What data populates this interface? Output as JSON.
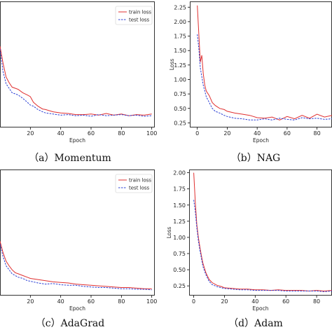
{
  "chart_data": [
    {
      "type": "line",
      "caption": "（a）Momentum",
      "xlabel": "Epoch",
      "ylabel": "",
      "xlim": [
        0,
        102
      ],
      "ylim": [
        0.1,
        2.35
      ],
      "xticks": [
        20,
        40,
        60,
        80,
        100
      ],
      "yticks": [],
      "legend": "top-right",
      "series": [
        {
          "name": "train loss",
          "color": "#e03030",
          "dash": "solid",
          "x": [
            0,
            2,
            4,
            6,
            8,
            10,
            12,
            15,
            18,
            20,
            22,
            25,
            28,
            30,
            35,
            40,
            45,
            50,
            55,
            60,
            65,
            70,
            75,
            80,
            85,
            90,
            95,
            100
          ],
          "y": [
            1.55,
            1.25,
            1.0,
            0.9,
            0.82,
            0.8,
            0.78,
            0.72,
            0.68,
            0.65,
            0.55,
            0.48,
            0.43,
            0.42,
            0.38,
            0.36,
            0.35,
            0.33,
            0.33,
            0.34,
            0.32,
            0.35,
            0.32,
            0.34,
            0.31,
            0.33,
            0.32,
            0.34
          ]
        },
        {
          "name": "test loss",
          "color": "#2a3fd4",
          "dash": "dashed",
          "x": [
            0,
            2,
            4,
            6,
            8,
            10,
            12,
            15,
            18,
            20,
            22,
            25,
            28,
            30,
            35,
            40,
            45,
            50,
            55,
            60,
            65,
            70,
            75,
            80,
            85,
            90,
            95,
            100
          ],
          "y": [
            1.5,
            1.1,
            0.88,
            0.8,
            0.72,
            0.7,
            0.68,
            0.62,
            0.55,
            0.5,
            0.48,
            0.42,
            0.38,
            0.36,
            0.34,
            0.32,
            0.33,
            0.31,
            0.32,
            0.3,
            0.33,
            0.31,
            0.32,
            0.33,
            0.31,
            0.32,
            0.3,
            0.31
          ]
        }
      ]
    },
    {
      "type": "line",
      "caption": "（b）NAG",
      "xlabel": "Epoch",
      "ylabel": "Loss",
      "xlim": [
        -5,
        90
      ],
      "ylim": [
        0.17,
        2.35
      ],
      "xticks": [
        0,
        20,
        40,
        60,
        80
      ],
      "yticks": [
        0.25,
        0.5,
        0.75,
        1.0,
        1.25,
        1.5,
        1.75,
        2.0,
        2.25
      ],
      "legend": "none",
      "series": [
        {
          "name": "",
          "color": "#e03030",
          "dash": "solid",
          "x": [
            0,
            1,
            2,
            3,
            4,
            5,
            6,
            8,
            10,
            12,
            15,
            18,
            20,
            25,
            30,
            35,
            40,
            45,
            50,
            55,
            60,
            65,
            70,
            75,
            80,
            85,
            90
          ],
          "y": [
            2.28,
            1.8,
            1.3,
            1.42,
            1.1,
            0.9,
            0.8,
            0.72,
            0.6,
            0.55,
            0.5,
            0.48,
            0.45,
            0.42,
            0.4,
            0.38,
            0.34,
            0.33,
            0.35,
            0.3,
            0.36,
            0.32,
            0.38,
            0.33,
            0.4,
            0.35,
            0.38
          ]
        },
        {
          "name": "",
          "color": "#2a3fd4",
          "dash": "dashed",
          "x": [
            0,
            1,
            2,
            3,
            4,
            5,
            6,
            8,
            10,
            12,
            15,
            18,
            20,
            25,
            30,
            35,
            40,
            45,
            50,
            55,
            60,
            65,
            70,
            75,
            80,
            85,
            90
          ],
          "y": [
            1.78,
            1.55,
            1.2,
            1.05,
            0.9,
            0.8,
            0.7,
            0.6,
            0.5,
            0.45,
            0.42,
            0.38,
            0.36,
            0.33,
            0.32,
            0.3,
            0.3,
            0.32,
            0.3,
            0.33,
            0.31,
            0.3,
            0.34,
            0.32,
            0.33,
            0.31,
            0.32
          ]
        }
      ]
    },
    {
      "type": "line",
      "caption": "（c）AdaGrad",
      "xlabel": "Epoch",
      "ylabel": "",
      "xlim": [
        0,
        102
      ],
      "ylim": [
        0.1,
        2.3
      ],
      "xticks": [
        20,
        40,
        60,
        80,
        100
      ],
      "yticks": [],
      "legend": "top-right",
      "series": [
        {
          "name": "train loss",
          "color": "#e03030",
          "dash": "solid",
          "x": [
            0,
            2,
            4,
            6,
            8,
            10,
            12,
            15,
            18,
            20,
            25,
            30,
            35,
            40,
            45,
            50,
            55,
            60,
            65,
            70,
            75,
            80,
            85,
            90,
            95,
            100
          ],
          "y": [
            1.05,
            0.85,
            0.7,
            0.62,
            0.55,
            0.5,
            0.48,
            0.45,
            0.42,
            0.4,
            0.38,
            0.36,
            0.34,
            0.33,
            0.32,
            0.3,
            0.29,
            0.28,
            0.27,
            0.26,
            0.25,
            0.24,
            0.24,
            0.23,
            0.22,
            0.22
          ]
        },
        {
          "name": "test loss",
          "color": "#2a3fd4",
          "dash": "dashed",
          "x": [
            0,
            2,
            4,
            6,
            8,
            10,
            12,
            15,
            18,
            20,
            25,
            30,
            35,
            40,
            45,
            50,
            55,
            60,
            65,
            70,
            75,
            80,
            85,
            90,
            95,
            100
          ],
          "y": [
            1.0,
            0.78,
            0.62,
            0.55,
            0.48,
            0.45,
            0.42,
            0.4,
            0.36,
            0.35,
            0.32,
            0.3,
            0.31,
            0.29,
            0.28,
            0.28,
            0.26,
            0.25,
            0.24,
            0.24,
            0.23,
            0.22,
            0.22,
            0.21,
            0.21,
            0.2
          ]
        }
      ]
    },
    {
      "type": "line",
      "caption": "（d）Adam",
      "xlabel": "Epoch",
      "ylabel": "Loss",
      "xlim": [
        -3,
        90
      ],
      "ylim": [
        0.1,
        2.05
      ],
      "xticks": [
        0,
        20,
        40,
        60,
        80
      ],
      "yticks": [
        0.25,
        0.5,
        0.75,
        1.0,
        1.25,
        1.5,
        1.75,
        2.0
      ],
      "legend": "none",
      "series": [
        {
          "name": "",
          "color": "#e03030",
          "dash": "solid",
          "x": [
            0,
            1,
            2,
            3,
            4,
            5,
            6,
            8,
            10,
            12,
            15,
            18,
            20,
            25,
            30,
            35,
            40,
            45,
            50,
            55,
            60,
            65,
            70,
            75,
            80,
            85,
            90
          ],
          "y": [
            2.0,
            1.55,
            1.2,
            1.0,
            0.85,
            0.72,
            0.6,
            0.45,
            0.35,
            0.3,
            0.26,
            0.24,
            0.22,
            0.21,
            0.2,
            0.2,
            0.19,
            0.19,
            0.18,
            0.19,
            0.18,
            0.18,
            0.18,
            0.17,
            0.18,
            0.17,
            0.18
          ]
        },
        {
          "name": "",
          "color": "#2a3fd4",
          "dash": "dashed",
          "x": [
            0,
            1,
            2,
            3,
            4,
            5,
            6,
            8,
            10,
            12,
            15,
            18,
            20,
            25,
            30,
            35,
            40,
            45,
            50,
            55,
            60,
            65,
            70,
            75,
            80,
            85,
            90
          ],
          "y": [
            1.58,
            1.4,
            1.15,
            0.95,
            0.8,
            0.68,
            0.55,
            0.42,
            0.32,
            0.27,
            0.24,
            0.22,
            0.21,
            0.2,
            0.19,
            0.19,
            0.18,
            0.18,
            0.18,
            0.18,
            0.17,
            0.17,
            0.17,
            0.17,
            0.17,
            0.16,
            0.17
          ]
        }
      ]
    }
  ]
}
